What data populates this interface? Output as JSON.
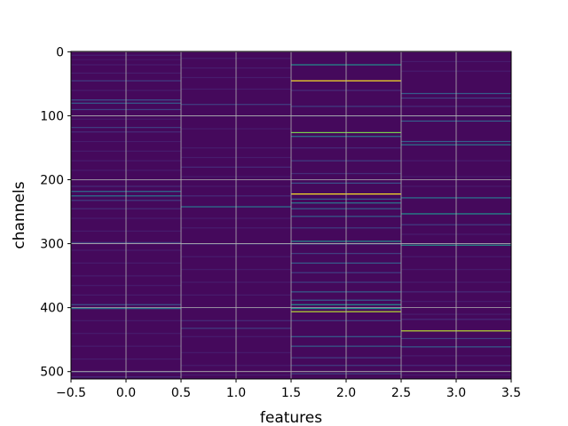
{
  "chart_data": {
    "type": "heatmap",
    "colormap": "viridis",
    "xlabel": "features",
    "ylabel": "channels",
    "xlim": [
      -0.5,
      3.5
    ],
    "ylim": [
      511.5,
      -0.5
    ],
    "grid": true,
    "x_ticks": [
      -0.5,
      0.0,
      0.5,
      1.0,
      1.5,
      2.0,
      2.5,
      3.0,
      3.5
    ],
    "x_tick_labels": [
      "−0.5",
      "0.0",
      "0.5",
      "1.0",
      "1.5",
      "2.0",
      "2.5",
      "3.0",
      "3.5"
    ],
    "y_ticks": [
      0,
      100,
      200,
      300,
      400,
      500
    ],
    "y_tick_labels": [
      "0",
      "100",
      "200",
      "300",
      "400",
      "500"
    ],
    "n_rows": 512,
    "n_cols": 4,
    "background_value": 0.03,
    "colors": {
      "low": "#440154",
      "mid": "#21918c",
      "high": "#fde725",
      "grid": "#b0b0b0"
    },
    "highlights": [
      [
        [
          5,
          0.12
        ],
        [
          12,
          0.08
        ],
        [
          20,
          0.1
        ],
        [
          33,
          0.1
        ],
        [
          45,
          0.2
        ],
        [
          60,
          0.1
        ],
        [
          75,
          0.25
        ],
        [
          80,
          0.3
        ],
        [
          90,
          0.2
        ],
        [
          105,
          0.1
        ],
        [
          118,
          0.2
        ],
        [
          125,
          0.15
        ],
        [
          140,
          0.1
        ],
        [
          155,
          0.1
        ],
        [
          170,
          0.1
        ],
        [
          185,
          0.1
        ],
        [
          200,
          0.1
        ],
        [
          210,
          0.15
        ],
        [
          218,
          0.35
        ],
        [
          225,
          0.4
        ],
        [
          232,
          0.2
        ],
        [
          245,
          0.15
        ],
        [
          260,
          0.1
        ],
        [
          280,
          0.1
        ],
        [
          298,
          0.2
        ],
        [
          310,
          0.1
        ],
        [
          330,
          0.1
        ],
        [
          350,
          0.1
        ],
        [
          365,
          0.1
        ],
        [
          380,
          0.1
        ],
        [
          395,
          0.25
        ],
        [
          401,
          0.4
        ],
        [
          420,
          0.1
        ],
        [
          440,
          0.1
        ],
        [
          460,
          0.1
        ],
        [
          480,
          0.1
        ],
        [
          500,
          0.2
        ],
        [
          508,
          0.15
        ]
      ],
      [
        [
          10,
          0.1
        ],
        [
          25,
          0.1
        ],
        [
          40,
          0.1
        ],
        [
          58,
          0.1
        ],
        [
          82,
          0.2
        ],
        [
          100,
          0.1
        ],
        [
          120,
          0.1
        ],
        [
          150,
          0.1
        ],
        [
          165,
          0.1
        ],
        [
          180,
          0.15
        ],
        [
          195,
          0.1
        ],
        [
          210,
          0.1
        ],
        [
          225,
          0.15
        ],
        [
          242,
          0.4
        ],
        [
          260,
          0.1
        ],
        [
          275,
          0.1
        ],
        [
          300,
          0.2
        ],
        [
          320,
          0.1
        ],
        [
          340,
          0.1
        ],
        [
          360,
          0.1
        ],
        [
          380,
          0.1
        ],
        [
          400,
          0.1
        ],
        [
          420,
          0.15
        ],
        [
          432,
          0.2
        ],
        [
          445,
          0.1
        ],
        [
          470,
          0.1
        ],
        [
          490,
          0.1
        ],
        [
          505,
          0.1
        ]
      ],
      [
        [
          20,
          0.5
        ],
        [
          45,
          1.0
        ],
        [
          60,
          0.15
        ],
        [
          85,
          0.2
        ],
        [
          100,
          0.15
        ],
        [
          126,
          0.8
        ],
        [
          132,
          0.4
        ],
        [
          150,
          0.15
        ],
        [
          170,
          0.2
        ],
        [
          190,
          0.15
        ],
        [
          205,
          0.25
        ],
        [
          222,
          1.0
        ],
        [
          230,
          0.3
        ],
        [
          236,
          0.4
        ],
        [
          245,
          0.3
        ],
        [
          257,
          0.3
        ],
        [
          275,
          0.2
        ],
        [
          296,
          0.5
        ],
        [
          300,
          0.3
        ],
        [
          315,
          0.2
        ],
        [
          330,
          0.3
        ],
        [
          345,
          0.2
        ],
        [
          360,
          0.2
        ],
        [
          375,
          0.3
        ],
        [
          388,
          0.3
        ],
        [
          395,
          0.5
        ],
        [
          401,
          0.5
        ],
        [
          406,
          0.9
        ],
        [
          420,
          0.2
        ],
        [
          445,
          0.3
        ],
        [
          460,
          0.3
        ],
        [
          478,
          0.2
        ],
        [
          490,
          0.2
        ],
        [
          503,
          0.2
        ]
      ],
      [
        [
          15,
          0.1
        ],
        [
          30,
          0.1
        ],
        [
          65,
          0.3
        ],
        [
          72,
          0.2
        ],
        [
          85,
          0.15
        ],
        [
          100,
          0.15
        ],
        [
          108,
          0.3
        ],
        [
          140,
          0.3
        ],
        [
          145,
          0.4
        ],
        [
          170,
          0.1
        ],
        [
          195,
          0.1
        ],
        [
          210,
          0.1
        ],
        [
          228,
          0.4
        ],
        [
          253,
          0.5
        ],
        [
          270,
          0.2
        ],
        [
          285,
          0.1
        ],
        [
          302,
          0.5
        ],
        [
          320,
          0.1
        ],
        [
          340,
          0.1
        ],
        [
          360,
          0.1
        ],
        [
          375,
          0.15
        ],
        [
          390,
          0.1
        ],
        [
          410,
          0.1
        ],
        [
          418,
          0.15
        ],
        [
          436,
          0.9
        ],
        [
          448,
          0.2
        ],
        [
          461,
          0.3
        ],
        [
          475,
          0.1
        ],
        [
          490,
          0.15
        ],
        [
          505,
          0.1
        ]
      ]
    ]
  }
}
